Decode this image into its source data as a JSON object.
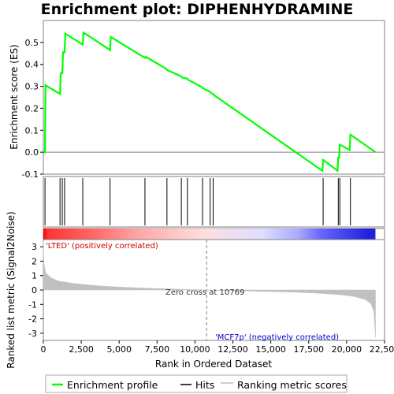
{
  "chart_data": {
    "type": "line",
    "title": "Enrichment plot: DIPHENHYDRAMINE",
    "xlabel": "Rank in Ordered Dataset",
    "x_ticks": [
      0,
      2500,
      5000,
      7500,
      10000,
      12500,
      15000,
      17500,
      20000,
      22500
    ],
    "x_tick_labels": [
      "0",
      "2,500",
      "5,000",
      "7,500",
      "10,000",
      "12,500",
      "15,000",
      "17,500",
      "20,000",
      "22,500"
    ],
    "xlim": [
      0,
      22500
    ],
    "es_panel": {
      "ylabel": "Enrichment score (ES)",
      "ylim": [
        -0.1,
        0.6
      ],
      "y_ticks": [
        -0.1,
        0.0,
        0.1,
        0.2,
        0.3,
        0.4,
        0.5
      ],
      "y_tick_labels": [
        "-0.1",
        "0.0",
        "0.1",
        "0.2",
        "0.3",
        "0.4",
        "0.5"
      ],
      "series": [
        {
          "name": "Enrichment profile",
          "color": "#00ff00",
          "x": [
            0,
            110,
            140,
            1100,
            1150,
            1250,
            1300,
            1400,
            1450,
            2600,
            2650,
            4400,
            4450,
            6700,
            6750,
            8100,
            8150,
            9100,
            9150,
            9500,
            9550,
            10500,
            10550,
            11000,
            11050,
            11200,
            11250,
            18400,
            18450,
            19400,
            19450,
            19500,
            19550,
            20200,
            20250,
            21900
          ],
          "y": [
            0.0,
            0.0,
            0.305,
            0.265,
            0.36,
            0.36,
            0.455,
            0.455,
            0.54,
            0.49,
            0.545,
            0.465,
            0.525,
            0.43,
            0.435,
            0.38,
            0.375,
            0.345,
            0.34,
            0.335,
            0.33,
            0.295,
            0.29,
            0.275,
            0.27,
            0.265,
            0.26,
            -0.085,
            -0.035,
            -0.085,
            -0.025,
            -0.025,
            0.035,
            0.01,
            0.08,
            0.0
          ]
        }
      ]
    },
    "hits": [
      110,
      1100,
      1250,
      1400,
      2600,
      4400,
      6700,
      8150,
      9100,
      9500,
      10500,
      11000,
      11200,
      18450,
      19450,
      19550,
      20250
    ],
    "color_bar": {
      "stops": [
        {
          "rank": 0,
          "color": "#ff0000"
        },
        {
          "rank": 300,
          "color": "#ff3333"
        },
        {
          "rank": 3200,
          "color": "#ff6666"
        },
        {
          "rank": 6500,
          "color": "#ffaaaa"
        },
        {
          "rank": 10600,
          "color": "#ffdede"
        },
        {
          "rank": 14400,
          "color": "#dedeff"
        },
        {
          "rank": 16800,
          "color": "#aaaaff"
        },
        {
          "rank": 18300,
          "color": "#6666ff"
        },
        {
          "rank": 21400,
          "color": "#2222dd"
        },
        {
          "rank": 21900,
          "color": "#2222dd"
        }
      ]
    },
    "metric_panel": {
      "ylabel": "Ranked list metric (Signal2Noise)",
      "ylim": [
        -3.5,
        3.5
      ],
      "y_ticks": [
        -3,
        -2,
        -1,
        0,
        1,
        2,
        3
      ],
      "y_tick_labels": [
        "-3",
        "-2",
        "-1",
        "0",
        "1",
        "2",
        "3"
      ],
      "fill_color": "#c0c0c0",
      "profile_x": [
        0,
        30,
        150,
        500,
        1000,
        2000,
        3500,
        5000,
        7000,
        9000,
        10769,
        12500,
        14500,
        16500,
        18000,
        19500,
        20500,
        21200,
        21600,
        21800,
        21900
      ],
      "profile_y": [
        3.4,
        1.9,
        1.2,
        0.85,
        0.62,
        0.45,
        0.3,
        0.2,
        0.12,
        0.05,
        0.0,
        -0.05,
        -0.1,
        -0.15,
        -0.22,
        -0.32,
        -0.45,
        -0.65,
        -0.95,
        -1.5,
        -3.3
      ],
      "zero_cross_rank": 10769
    },
    "annotations": {
      "positive": "'LTED' (positively correlated)",
      "negative": "'MCF7p' (negatively correlated)",
      "zero_cross": "Zero cross at 10769"
    },
    "legend": {
      "placement": "bottom",
      "items": [
        {
          "label": "Enrichment profile",
          "color": "#00ff00"
        },
        {
          "label": "Hits",
          "color": "#000000"
        },
        {
          "label": "Ranking metric scores",
          "color": "#c0c0c0"
        }
      ]
    }
  }
}
